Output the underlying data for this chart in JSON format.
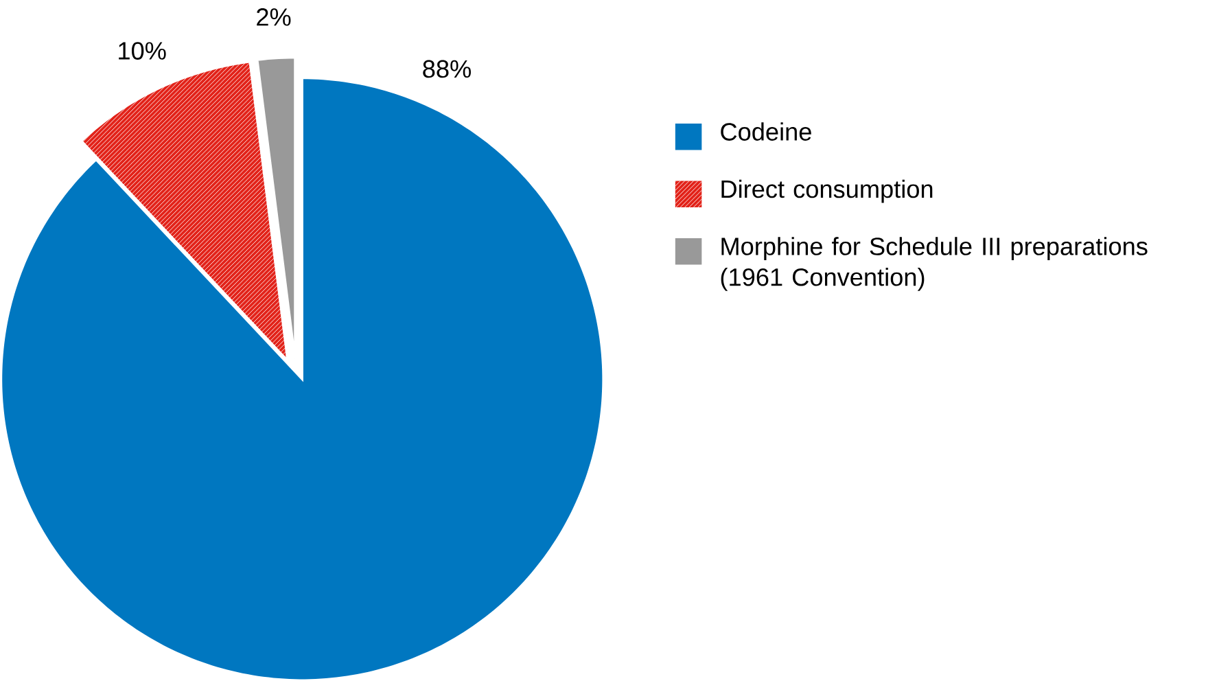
{
  "chart_data": {
    "type": "pie",
    "categories": [
      "Codeine",
      "Direct consumption",
      "Morphine for Schedule III preparations (1961 Convention)"
    ],
    "values": [
      88,
      10,
      2
    ],
    "colors": [
      "#0077c0",
      "#e2231a",
      "#999999"
    ],
    "value_labels": [
      "88%",
      "10%",
      "2%"
    ],
    "legend": "right"
  }
}
